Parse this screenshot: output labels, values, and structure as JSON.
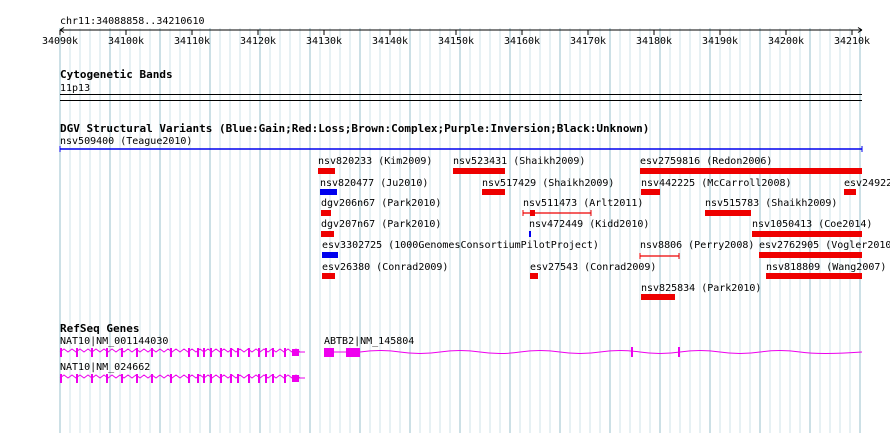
{
  "region": "chr11:34088858..34210610",
  "ruler": {
    "ticks": [
      "34090k",
      "34100k",
      "34110k",
      "34120k",
      "34130k",
      "34140k",
      "34150k",
      "34160k",
      "34170k",
      "34180k",
      "34190k",
      "34200k",
      "34210k"
    ]
  },
  "tracks": {
    "cytoband": {
      "title": "Cytogenetic Bands",
      "band": "11p13"
    },
    "dgv": {
      "title": "DGV Structural Variants (Blue:Gain;Red:Loss;Brown:Complex;Purple:Inversion;Black:Unknown)",
      "top_label": "nsv509400 (Teague2010)",
      "features": [
        {
          "label": "nsv820233 (Kim2009)",
          "color": "#ee0000"
        },
        {
          "label": "nsv523431 (Shaikh2009)",
          "color": "#ee0000"
        },
        {
          "label": "esv2759816 (Redon2006)",
          "color": "#ee0000"
        },
        {
          "label": "nsv820477 (Ju2010)",
          "color": "#0000ee"
        },
        {
          "label": "nsv517429 (Shaikh2009)",
          "color": "#ee0000"
        },
        {
          "label": "nsv442225 (McCarroll2008)",
          "color": "#ee0000"
        },
        {
          "label": "esv24922",
          "color": "#ee0000"
        },
        {
          "label": "dgv206n67 (Park2010)",
          "color": "#ee0000"
        },
        {
          "label": "nsv511473 (Arlt2011)",
          "color": "#ee0000"
        },
        {
          "label": "nsv515783 (Shaikh2009)",
          "color": "#ee0000"
        },
        {
          "label": "dgv207n67 (Park2010)",
          "color": "#ee0000"
        },
        {
          "label": "nsv472449 (Kidd2010)",
          "color": "#0000ee"
        },
        {
          "label": "nsv1050413 (Coe2014)",
          "color": "#ee0000"
        },
        {
          "label": "esv3302725 (1000GenomesConsortiumPilotProject)",
          "color": "#0000ee"
        },
        {
          "label": "nsv8806 (Perry2008)",
          "color": "#ee0000"
        },
        {
          "label": "esv2762905 (Vogler2010",
          "color": "#ee0000"
        },
        {
          "label": "esv26380 (Conrad2009)",
          "color": "#ee0000"
        },
        {
          "label": "esv27543 (Conrad2009)",
          "color": "#ee0000"
        },
        {
          "label": "nsv818809 (Wang2007)",
          "color": "#ee0000"
        },
        {
          "label": "nsv825834 (Park2010)",
          "color": "#ee0000"
        }
      ]
    },
    "refseq": {
      "title": "RefSeq Genes",
      "genes": [
        {
          "label": "NAT10|NM_001144030",
          "color": "#ee00ee"
        },
        {
          "label": "ABTB2|NM_145804",
          "color": "#ee00ee"
        },
        {
          "label": "NAT10|NM_024662",
          "color": "#ee00ee"
        }
      ]
    }
  }
}
